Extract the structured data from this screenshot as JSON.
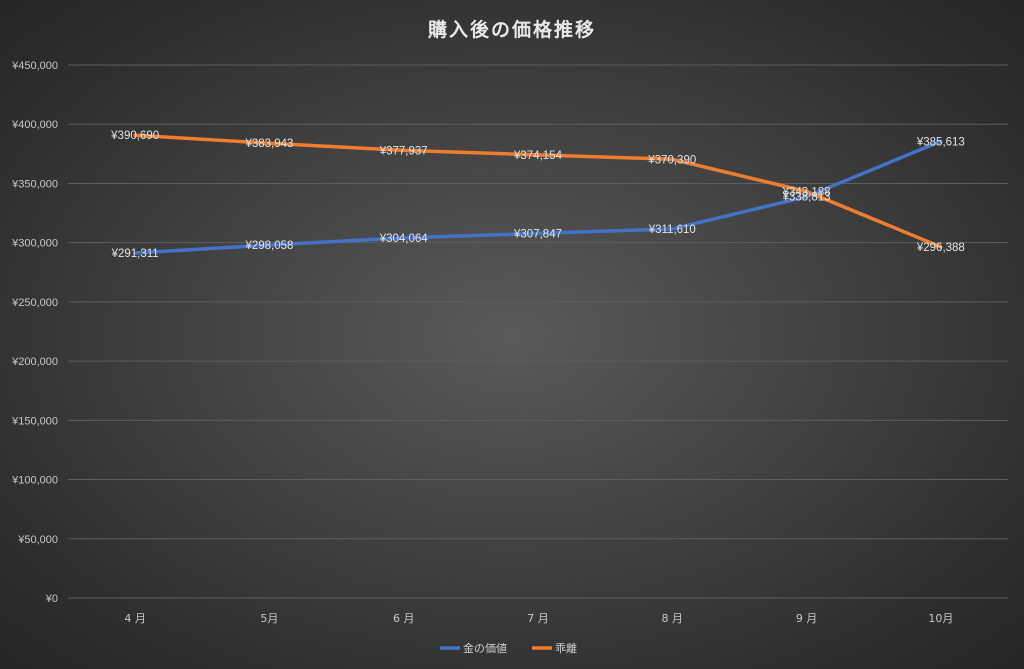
{
  "chart_data": {
    "type": "line",
    "title": "購入後の価格推移",
    "categories": [
      "4 月",
      "5月",
      "6 月",
      "7 月",
      "8 月",
      "9 月",
      "10月"
    ],
    "series": [
      {
        "name": "金の価値",
        "color": "#4472c4",
        "values": [
          291311,
          298058,
          304064,
          307847,
          311610,
          338813,
          385613
        ],
        "labels": [
          "¥291,311",
          "¥298,058",
          "¥304,064",
          "¥307,847",
          "¥311,610",
          "¥338,813",
          "¥385,613"
        ]
      },
      {
        "name": "乖離",
        "color": "#ed7d31",
        "values": [
          390690,
          383943,
          377937,
          374154,
          370390,
          343188,
          296388
        ],
        "labels": [
          "¥390,690",
          "¥383,943",
          "¥377,937",
          "¥374,154",
          "¥370,390",
          "¥343,188",
          "¥296,388"
        ]
      }
    ],
    "xlabel": "",
    "ylabel": "",
    "ylim": [
      0,
      450000
    ],
    "yticks": [
      0,
      50000,
      100000,
      150000,
      200000,
      250000,
      300000,
      350000,
      400000,
      450000
    ],
    "ytick_labels": [
      "¥0",
      "¥50,000",
      "¥100,000",
      "¥150,000",
      "¥200,000",
      "¥250,000",
      "¥300,000",
      "¥350,000",
      "¥400,000",
      "¥450,000"
    ],
    "grid": true,
    "legend_position": "bottom"
  },
  "colors": {
    "background_center": "#5a5a5a",
    "background_edge": "#262626",
    "series_blue": "#4472c4",
    "series_orange": "#ed7d31"
  }
}
